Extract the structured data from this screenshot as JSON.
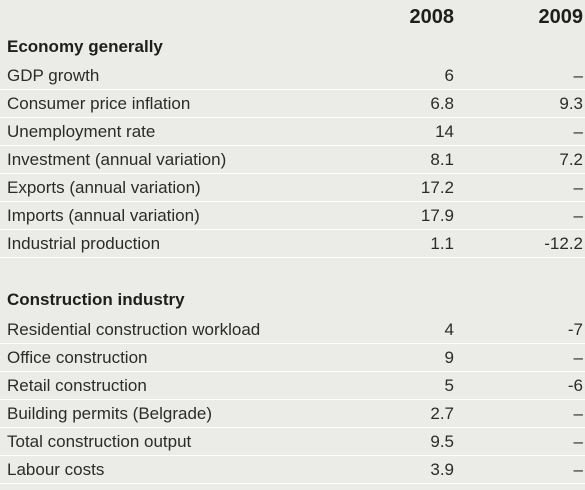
{
  "columns": {
    "year1": "2008",
    "year2": "2009"
  },
  "sections": [
    {
      "title": "Economy generally",
      "rows": [
        {
          "label": "GDP growth",
          "y2008": "6",
          "y2009": "–"
        },
        {
          "label": "Consumer price inflation",
          "y2008": "6.8",
          "y2009": "9.3"
        },
        {
          "label": "Unemployment rate",
          "y2008": "14",
          "y2009": "–"
        },
        {
          "label": "Investment (annual variation)",
          "y2008": "8.1",
          "y2009": "7.2"
        },
        {
          "label": "Exports (annual variation)",
          "y2008": "17.2",
          "y2009": "–"
        },
        {
          "label": "Imports (annual variation)",
          "y2008": "17.9",
          "y2009": "–"
        },
        {
          "label": "Industrial production",
          "y2008": "1.1",
          "y2009": "-12.2"
        }
      ]
    },
    {
      "title": "Construction industry",
      "rows": [
        {
          "label": "Residential construction workload",
          "y2008": "4",
          "y2009": "-7"
        },
        {
          "label": "Office construction",
          "y2008": "9",
          "y2009": "–"
        },
        {
          "label": "Retail construction",
          "y2008": "5",
          "y2009": "-6"
        },
        {
          "label": "Building permits (Belgrade)",
          "y2008": "2.7",
          "y2009": "–"
        },
        {
          "label": "Total construction output",
          "y2008": "9.5",
          "y2009": "–"
        },
        {
          "label": "Labour costs",
          "y2008": "3.9",
          "y2009": "–"
        }
      ]
    }
  ]
}
